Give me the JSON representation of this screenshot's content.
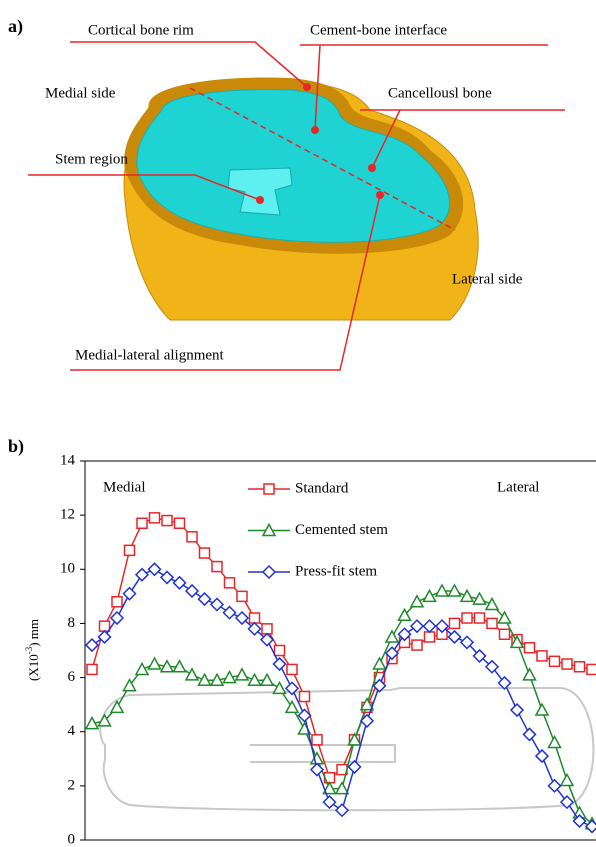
{
  "panel_a": {
    "label": "a)",
    "labels": {
      "cortical": "Cortical bone rim",
      "interface": "Cement-bone interface",
      "medial": "Medial side",
      "cancellous": "Cancellousl bone",
      "stem": "Stem region",
      "lateral": "Lateral side",
      "alignment": "Medial-lateral alignment"
    }
  },
  "chart_data": {
    "type": "line",
    "panel_label": "b)",
    "y_label": {
      "start": "(X10",
      "sup": "-3",
      "end": ") mm"
    },
    "annotations": [
      "Medial",
      "Lateral"
    ],
    "ylim": [
      0,
      14
    ],
    "yticks": [
      0,
      2,
      4,
      6,
      8,
      10,
      12,
      14
    ],
    "series": [
      {
        "name": "Standard",
        "color": "#e8262a",
        "marker": "square",
        "values": [
          6.3,
          7.9,
          8.8,
          10.7,
          11.7,
          11.9,
          11.8,
          11.7,
          11.2,
          10.6,
          10.1,
          9.5,
          9.0,
          8.2,
          7.8,
          7.0,
          6.3,
          5.3,
          3.7,
          2.3,
          2.6,
          3.7,
          4.9,
          6.0,
          6.7,
          7.3,
          7.2,
          7.5,
          7.6,
          8.0,
          8.2,
          8.2,
          8.0,
          7.6,
          7.4,
          7.1,
          6.8,
          6.6,
          6.5,
          6.4,
          6.3
        ]
      },
      {
        "name": "Cemented stem",
        "color": "#1f8a2a",
        "marker": "triangle",
        "values": [
          4.3,
          4.4,
          4.9,
          5.7,
          6.3,
          6.5,
          6.4,
          6.4,
          6.1,
          5.9,
          5.9,
          6.0,
          6.1,
          5.9,
          5.9,
          5.6,
          4.9,
          4.1,
          3.0,
          1.9,
          1.9,
          3.7,
          5.0,
          6.5,
          7.5,
          8.3,
          8.8,
          9.0,
          9.2,
          9.2,
          9.0,
          8.9,
          8.7,
          8.2,
          7.3,
          6.1,
          4.8,
          3.6,
          2.2,
          1.0,
          0.6
        ]
      },
      {
        "name": "Press-fit stem",
        "color": "#1f33d6",
        "marker": "diamond",
        "values": [
          7.2,
          7.5,
          8.2,
          9.1,
          9.8,
          10.0,
          9.7,
          9.5,
          9.2,
          8.9,
          8.7,
          8.4,
          8.2,
          7.8,
          7.4,
          6.5,
          5.6,
          4.6,
          2.6,
          1.4,
          1.1,
          2.7,
          4.4,
          5.7,
          6.9,
          7.6,
          7.9,
          7.9,
          7.9,
          7.5,
          7.3,
          6.8,
          6.4,
          5.8,
          4.8,
          3.9,
          3.1,
          2.0,
          1.4,
          0.7,
          0.5
        ]
      }
    ]
  }
}
